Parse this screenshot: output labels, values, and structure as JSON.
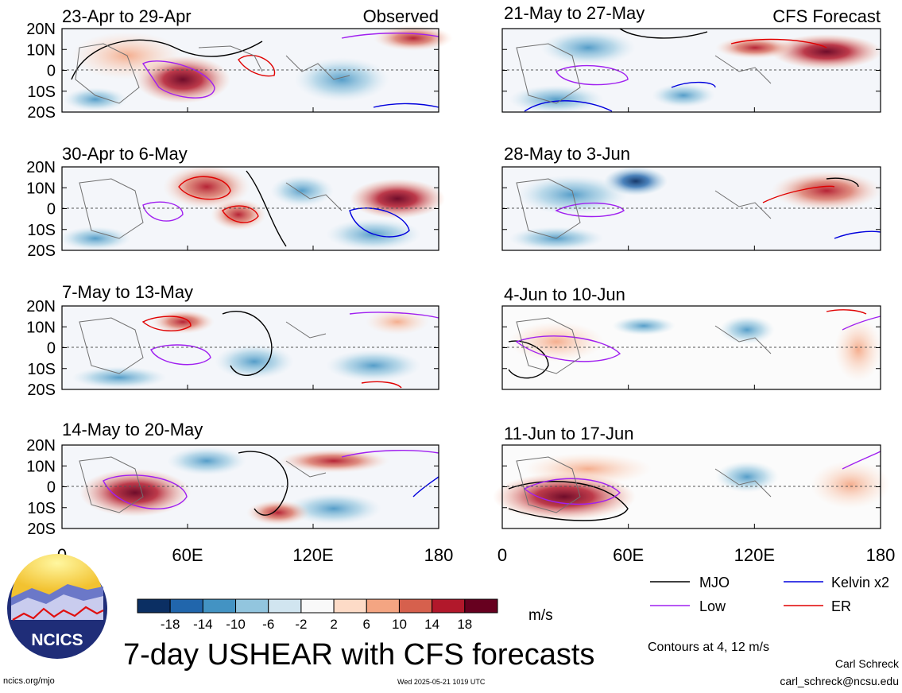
{
  "observed_label": "Observed",
  "forecast_label": "CFS Forecast",
  "lat_labels": [
    "20N",
    "10N",
    "0",
    "10S",
    "20S"
  ],
  "lon_labels": [
    "0",
    "60E",
    "120E",
    "180"
  ],
  "panels_observed": [
    {
      "title": "23-Apr to 29-Apr"
    },
    {
      "title": "30-Apr to 6-May"
    },
    {
      "title": "7-May to 13-May"
    },
    {
      "title": "14-May to 20-May"
    }
  ],
  "panels_forecast": [
    {
      "title": "21-May to 27-May"
    },
    {
      "title": "28-May to 3-Jun"
    },
    {
      "title": "4-Jun to 10-Jun"
    },
    {
      "title": "11-Jun to 17-Jun"
    }
  ],
  "colorbar": {
    "ticks": [
      "-18",
      "-14",
      "-10",
      "-6",
      "-2",
      "2",
      "6",
      "10",
      "14",
      "18"
    ],
    "colors": [
      "#0b2f63",
      "#2166ac",
      "#4393c3",
      "#92c5de",
      "#d1e5f0",
      "#f9f9f9",
      "#fddbc7",
      "#f4a582",
      "#d6604d",
      "#b2182b",
      "#67001f"
    ],
    "units": "m/s"
  },
  "legend": {
    "items": [
      {
        "label": "MJO",
        "color": "#000000"
      },
      {
        "label": "Kelvin x2",
        "color": "#0000dd"
      },
      {
        "label": "Low",
        "color": "#a020f0"
      },
      {
        "label": "ER",
        "color": "#e00000"
      }
    ],
    "contour_note": "Contours at 4, 12 m/s"
  },
  "logo_text": "NCICS",
  "main_title": "7-day USHEAR with CFS forecasts",
  "footer": {
    "url": "ncics.org/mjo",
    "timestamp": "Wed 2025-05-21 1019 UTC",
    "author": "Carl Schreck",
    "email": "carl_schreck@ncsu.edu"
  }
}
